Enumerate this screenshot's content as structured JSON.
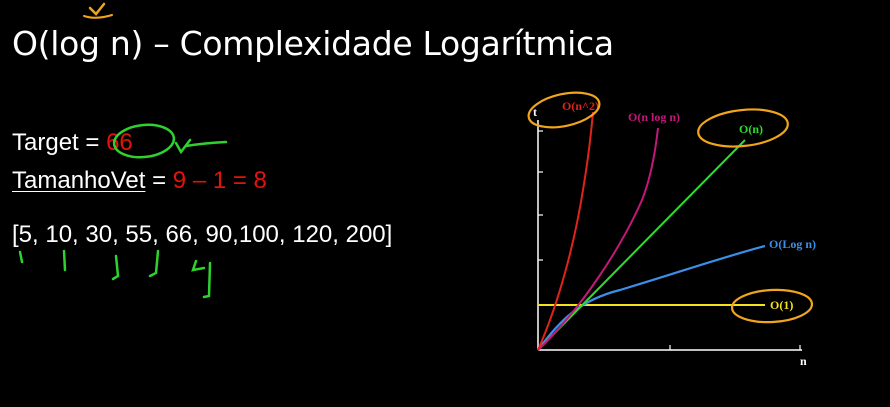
{
  "title": "O(log n) – Complexidade Logarítmica",
  "target": {
    "label": "Target = ",
    "value": "66"
  },
  "tamanho": {
    "label": "TamanhoVet",
    "sep": " = ",
    "value": "9 – 1 = 8"
  },
  "array_text": "[5, 10, 30, 55, 66, 90,100, 120, 200]",
  "chart": {
    "x_axis_label": "n",
    "y_axis_label": "t",
    "curves": [
      {
        "name": "O(n^2)",
        "color": "#e0231b"
      },
      {
        "name": "O(n log n)",
        "color": "#c2187a"
      },
      {
        "name": "O(n)",
        "color": "#2ddc2d"
      },
      {
        "name": "O(Log n)",
        "color": "#3b8fe6"
      },
      {
        "name": "O(1)",
        "color": "#f2e21c"
      }
    ]
  },
  "annotation_colors": {
    "marker_green": "#2fd12f",
    "marker_orange": "#f0a51c"
  }
}
